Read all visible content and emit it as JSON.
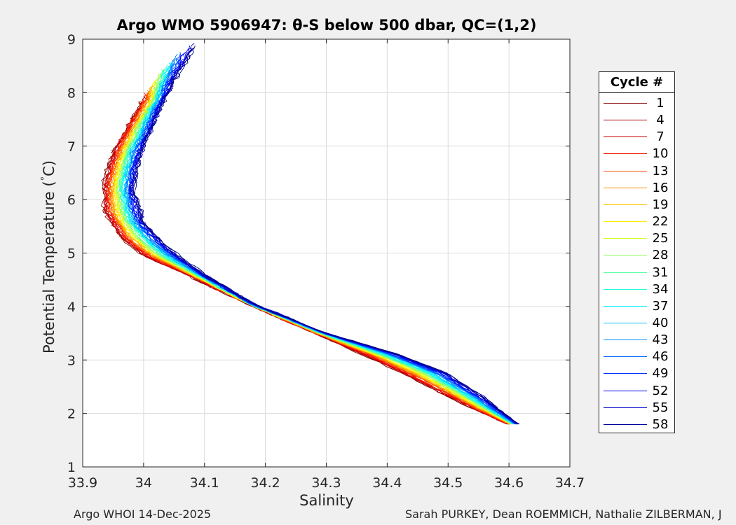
{
  "chart_data": {
    "type": "line",
    "title": "Argo WMO 5906947: θ-S below 500 dbar,  QC=(1,2)",
    "xlabel": "Salinity",
    "ylabel_main": "Potential Temperature (",
    "ylabel_deg": "°",
    "ylabel_end": "C)",
    "xlim": [
      33.9,
      34.7
    ],
    "ylim": [
      1,
      9
    ],
    "xticks": [
      33.9,
      34.0,
      34.1,
      34.2,
      34.3,
      34.4,
      34.5,
      34.6,
      34.7
    ],
    "xtick_labels": [
      "33.9",
      "34",
      "34.1",
      "34.2",
      "34.3",
      "34.4",
      "34.5",
      "34.6",
      "34.7"
    ],
    "yticks": [
      1,
      2,
      3,
      4,
      5,
      6,
      7,
      8,
      9
    ],
    "ytick_labels": [
      "1",
      "2",
      "3",
      "4",
      "5",
      "6",
      "7",
      "8",
      "9"
    ],
    "grid": true,
    "legend_position": "right",
    "legend_title": "Cycle #",
    "legend_entries": [
      {
        "label": "1",
        "color": "#800000"
      },
      {
        "label": "4",
        "color": "#a40000"
      },
      {
        "label": "7",
        "color": "#c80000"
      },
      {
        "label": "10",
        "color": "#ee1e00"
      },
      {
        "label": "13",
        "color": "#ff4e00"
      },
      {
        "label": "16",
        "color": "#ff8c00"
      },
      {
        "label": "19",
        "color": "#ffc000"
      },
      {
        "label": "22",
        "color": "#ffec00"
      },
      {
        "label": "25",
        "color": "#c8ff20"
      },
      {
        "label": "28",
        "color": "#8cff60"
      },
      {
        "label": "31",
        "color": "#50ffa0"
      },
      {
        "label": "34",
        "color": "#20ffd8"
      },
      {
        "label": "37",
        "color": "#00e8ff"
      },
      {
        "label": "40",
        "color": "#00c0ff"
      },
      {
        "label": "43",
        "color": "#0090ff"
      },
      {
        "label": "46",
        "color": "#0060ff"
      },
      {
        "label": "49",
        "color": "#0030ff"
      },
      {
        "label": "52",
        "color": "#0000f0"
      },
      {
        "label": "55",
        "color": "#0000c8"
      },
      {
        "label": "58",
        "color": "#00009c"
      }
    ],
    "series_anchor_profiles": {
      "red_early_cycles": [
        [
          34.597,
          1.8
        ],
        [
          34.52,
          2.2
        ],
        [
          34.45,
          2.6
        ],
        [
          34.38,
          3.0
        ],
        [
          34.28,
          3.5
        ],
        [
          34.17,
          4.05
        ],
        [
          34.08,
          4.55
        ],
        [
          34.0,
          4.95
        ],
        [
          33.96,
          5.3
        ],
        [
          33.935,
          5.8
        ],
        [
          33.935,
          6.3
        ],
        [
          33.95,
          6.9
        ],
        [
          33.975,
          7.4
        ],
        [
          34.0,
          7.9
        ]
      ],
      "blue_late_cycles": [
        [
          34.616,
          1.8
        ],
        [
          34.56,
          2.3
        ],
        [
          34.5,
          2.75
        ],
        [
          34.42,
          3.1
        ],
        [
          34.3,
          3.5
        ],
        [
          34.18,
          4.05
        ],
        [
          34.1,
          4.6
        ],
        [
          34.04,
          5.1
        ],
        [
          34.0,
          5.6
        ],
        [
          33.985,
          6.2
        ],
        [
          33.995,
          6.8
        ],
        [
          34.02,
          7.5
        ],
        [
          34.05,
          8.2
        ],
        [
          34.09,
          8.95
        ]
      ]
    }
  },
  "footer": {
    "left": "Argo WHOI 14-Dec-2025",
    "right": "Sarah PURKEY, Dean ROEMMICH, Nathalie ZILBERMAN, J"
  }
}
